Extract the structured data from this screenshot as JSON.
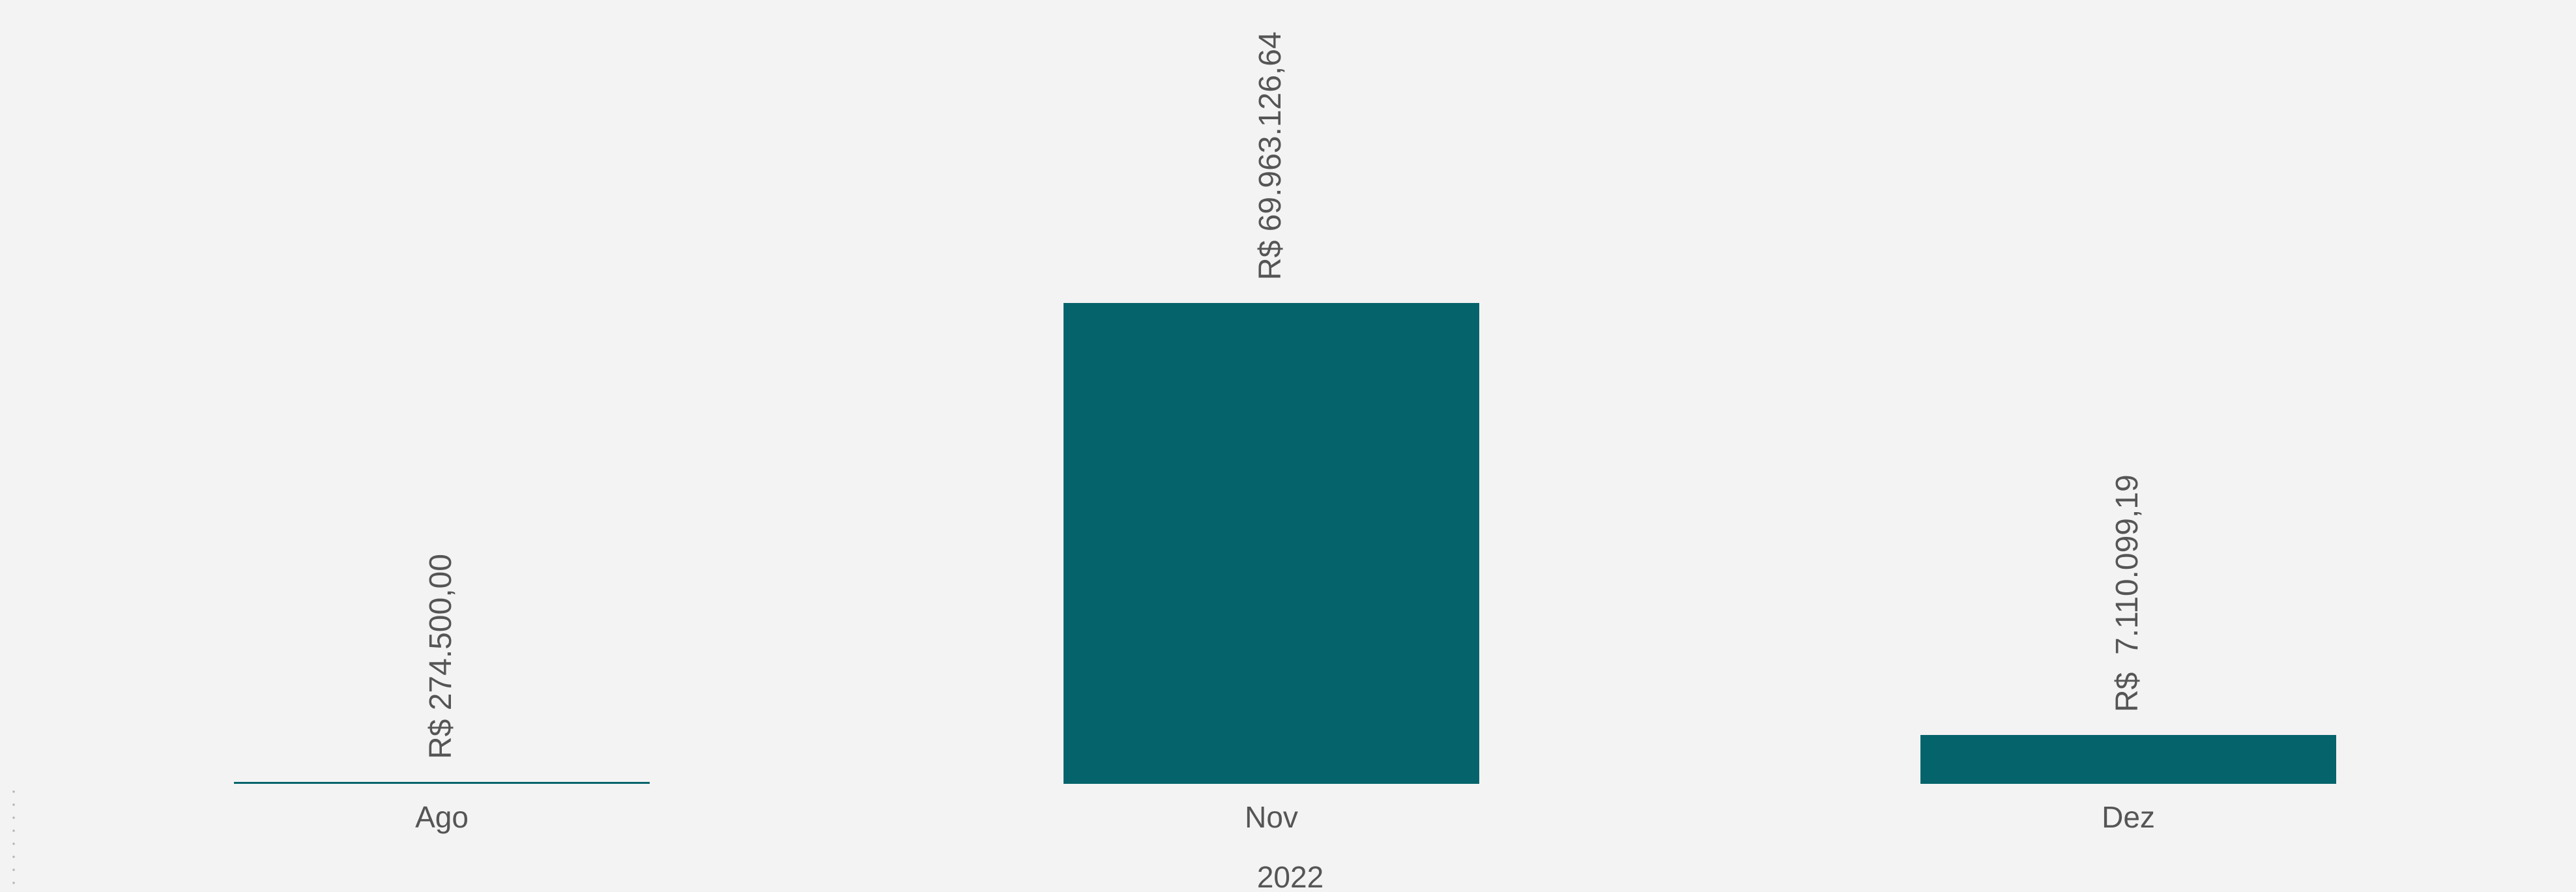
{
  "chart_data": {
    "type": "bar",
    "categories": [
      "Ago",
      "Nov",
      "Dez"
    ],
    "values": [
      274500.0,
      69963126.64,
      7110099.19
    ],
    "data_labels": [
      "R$ 274.500,00",
      "R$ 69.963.126,64",
      "R$  7.110.099,19"
    ],
    "group_label": "2022",
    "title": "",
    "xlabel": "",
    "ylabel": "",
    "ylim": [
      0,
      70000000
    ],
    "grid": false,
    "legend": "none"
  },
  "colors": {
    "bar": "#05646b",
    "text": "#555555",
    "background": "#f3f3f3"
  }
}
